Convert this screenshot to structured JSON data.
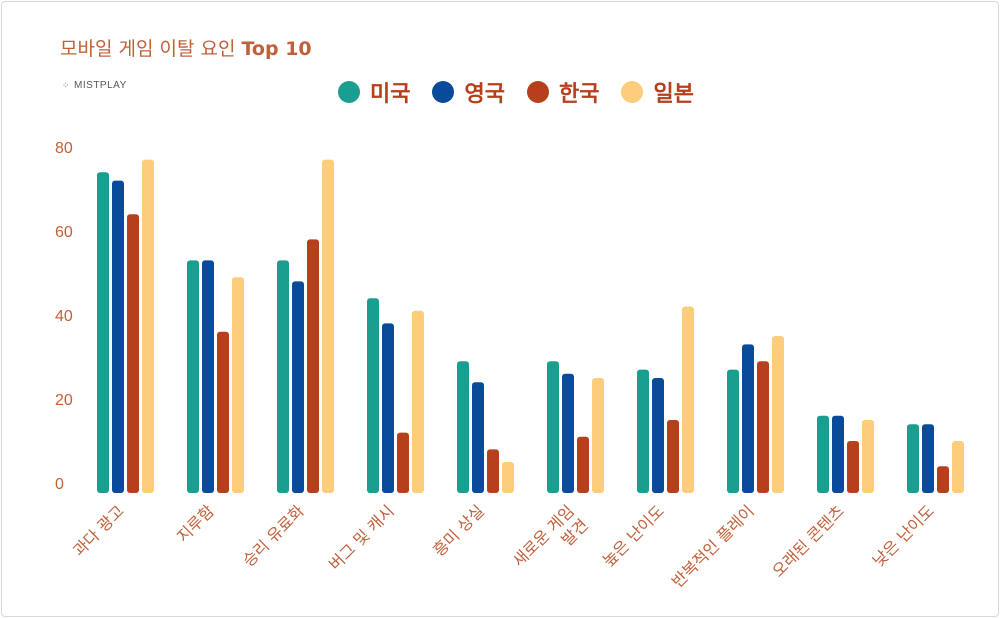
{
  "chart_data": {
    "type": "bar",
    "title": "모바일 게임 이탈 요인",
    "title_bold": "Top 10",
    "brand": "MISTPLAY",
    "xlabel": "",
    "ylabel": "",
    "ylim": [
      0,
      80
    ],
    "yticks": [
      "0",
      "20",
      "40",
      "60",
      "80"
    ],
    "grid": false,
    "legend_position": "top-center",
    "categories": [
      "과다 광고",
      "지루함",
      "승리 유료화",
      "버그 및 캐시",
      "흥미 상실",
      "새로운 게임|발견",
      "높은 난이도",
      "반복적인 플레이",
      "오래된 콘텐츠",
      "낮은 난이도"
    ],
    "series": [
      {
        "name": "미국",
        "color": "#1a9e8f",
        "values": [
          74,
          53,
          53,
          44,
          29,
          29,
          27,
          27,
          16,
          14
        ]
      },
      {
        "name": "영국",
        "color": "#0a4a9a",
        "values": [
          72,
          53,
          48,
          38,
          24,
          26,
          25,
          33,
          16,
          14
        ]
      },
      {
        "name": "한국",
        "color": "#b5401b",
        "values": [
          64,
          36,
          58,
          12,
          8,
          11,
          15,
          29,
          10,
          4
        ]
      },
      {
        "name": "일본",
        "color": "#fdcd7b",
        "values": [
          77,
          49,
          77,
          41,
          5,
          25,
          42,
          35,
          15,
          10
        ]
      }
    ]
  }
}
